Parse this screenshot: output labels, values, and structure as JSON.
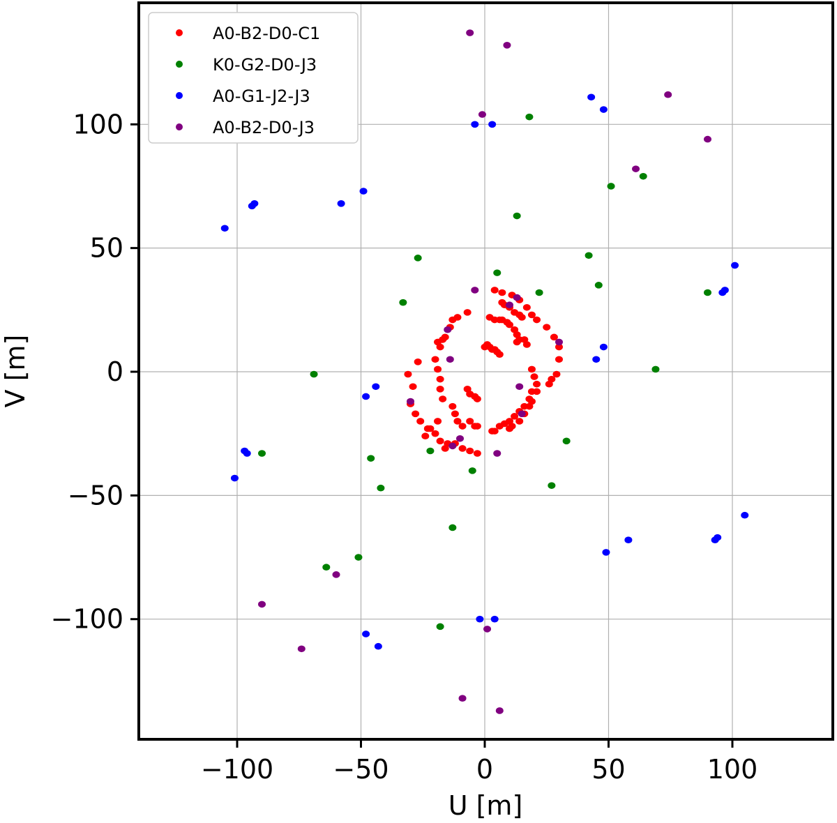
{
  "chart_data": {
    "type": "scatter",
    "title": "",
    "xlabel": "U [m]",
    "ylabel": "V [m]",
    "xlim": [
      -140,
      140
    ],
    "ylim": [
      -148,
      150
    ],
    "xticks": [
      -100,
      -50,
      0,
      50,
      100
    ],
    "yticks": [
      -100,
      -50,
      0,
      50,
      100
    ],
    "xtick_labels": [
      "−100",
      "−50",
      "0",
      "50",
      "100"
    ],
    "ytick_labels": [
      "−100",
      "−50",
      "0",
      "50",
      "100"
    ],
    "grid": true,
    "legend_position": "top-left",
    "series": [
      {
        "name": "A0-B2-D0-C1",
        "color": "#ff0000",
        "points": [
          [
            -31,
            -1
          ],
          [
            -29,
            -6
          ],
          [
            -30,
            -13
          ],
          [
            -28,
            -17
          ],
          [
            -26,
            -20
          ],
          [
            -23,
            -23
          ],
          [
            -20,
            -25
          ],
          [
            -18,
            -28
          ],
          [
            -16,
            -31
          ],
          [
            -27,
            4
          ],
          [
            -20,
            5
          ],
          [
            -19,
            1
          ],
          [
            -18,
            -3
          ],
          [
            -18,
            -7
          ],
          [
            -17,
            -11
          ],
          [
            -18,
            10
          ],
          [
            -17,
            13
          ],
          [
            -19,
            12
          ],
          [
            -16,
            14
          ],
          [
            -14,
            18
          ],
          [
            -13,
            21
          ],
          [
            -11,
            22
          ],
          [
            -7,
            24
          ],
          [
            -19,
            -20
          ],
          [
            -13,
            -14
          ],
          [
            -12,
            -17
          ],
          [
            -11,
            -20
          ],
          [
            -9,
            -22
          ],
          [
            -6,
            -20
          ],
          [
            -4,
            -22
          ],
          [
            -3,
            -22
          ],
          [
            -9,
            -31
          ],
          [
            -6,
            -32
          ],
          [
            -3,
            -33
          ],
          [
            -7,
            -7
          ],
          [
            -6,
            -9
          ],
          [
            -4,
            -10
          ],
          [
            -3,
            -11
          ],
          [
            0,
            10
          ],
          [
            1,
            11
          ],
          [
            2,
            10
          ],
          [
            3,
            9
          ],
          [
            4,
            9
          ],
          [
            5,
            8
          ],
          [
            6,
            7
          ],
          [
            2,
            22
          ],
          [
            4,
            21
          ],
          [
            6,
            21
          ],
          [
            7,
            21
          ],
          [
            9,
            20
          ],
          [
            10,
            19
          ],
          [
            4,
            33
          ],
          [
            7,
            32
          ],
          [
            11,
            31
          ],
          [
            14,
            29
          ],
          [
            17,
            26
          ],
          [
            19,
            23
          ],
          [
            21,
            21
          ],
          [
            25,
            18
          ],
          [
            28,
            14
          ],
          [
            30,
            10
          ],
          [
            30,
            5
          ],
          [
            12,
            17
          ],
          [
            13,
            15
          ],
          [
            14,
            13
          ],
          [
            13,
            12
          ],
          [
            16,
            13
          ],
          [
            17,
            11
          ],
          [
            19,
            1
          ],
          [
            20,
            -2
          ],
          [
            21,
            -5
          ],
          [
            19,
            -8
          ],
          [
            18,
            -11
          ],
          [
            16,
            -14
          ],
          [
            14,
            -16
          ],
          [
            12,
            -18
          ],
          [
            10,
            -20
          ],
          [
            8,
            -21
          ],
          [
            6,
            -22
          ],
          [
            4,
            -24
          ],
          [
            3,
            -24
          ],
          [
            21,
            -8
          ],
          [
            19,
            -12
          ],
          [
            18,
            -14
          ],
          [
            16,
            -17
          ],
          [
            14,
            -20
          ],
          [
            11,
            -22
          ],
          [
            10,
            -23
          ],
          [
            29,
            -1
          ],
          [
            27,
            -3
          ],
          [
            26,
            -5
          ],
          [
            -24,
            -26
          ],
          [
            -22,
            -23
          ],
          [
            -15,
            -29
          ],
          [
            -12,
            -29
          ],
          [
            7,
            28
          ],
          [
            8,
            27
          ],
          [
            10,
            26
          ],
          [
            12,
            24
          ],
          [
            14,
            23
          ],
          [
            15,
            22
          ]
        ]
      },
      {
        "name": "K0-G2-D0-J3",
        "color": "#008000",
        "points": [
          [
            -69,
            -1
          ],
          [
            69,
            1
          ],
          [
            -33,
            28
          ],
          [
            33,
            -28
          ],
          [
            -27,
            46
          ],
          [
            27,
            -46
          ],
          [
            5,
            40
          ],
          [
            -5,
            -40
          ],
          [
            13,
            63
          ],
          [
            -13,
            -63
          ],
          [
            18,
            103
          ],
          [
            -18,
            -103
          ],
          [
            42,
            47
          ],
          [
            -42,
            -47
          ],
          [
            46,
            35
          ],
          [
            -46,
            -35
          ],
          [
            22,
            32
          ],
          [
            -22,
            -32
          ],
          [
            51,
            75
          ],
          [
            -51,
            -75
          ],
          [
            64,
            79
          ],
          [
            -64,
            -79
          ],
          [
            90,
            32
          ],
          [
            -90,
            -33
          ]
        ]
      },
      {
        "name": "A0-G1-J2-J3",
        "color": "#0000ff",
        "points": [
          [
            -105,
            58
          ],
          [
            105,
            -58
          ],
          [
            -93,
            68
          ],
          [
            -94,
            67
          ],
          [
            93,
            -68
          ],
          [
            94,
            -67
          ],
          [
            -58,
            68
          ],
          [
            58,
            -68
          ],
          [
            -49,
            73
          ],
          [
            49,
            -73
          ],
          [
            -4,
            100
          ],
          [
            3,
            100
          ],
          [
            4,
            -100
          ],
          [
            -2,
            -100
          ],
          [
            43,
            111
          ],
          [
            -43,
            -111
          ],
          [
            48,
            106
          ],
          [
            -48,
            -106
          ],
          [
            101,
            43
          ],
          [
            -101,
            -43
          ],
          [
            97,
            33
          ],
          [
            96,
            32
          ],
          [
            -96,
            -33
          ],
          [
            -97,
            -32
          ],
          [
            48,
            10
          ],
          [
            -48,
            -10
          ],
          [
            45,
            5
          ],
          [
            -44,
            -6
          ]
        ]
      },
      {
        "name": "A0-B2-D0-J3",
        "color": "#800080",
        "points": [
          [
            -6,
            137
          ],
          [
            6,
            -137
          ],
          [
            9,
            132
          ],
          [
            -9,
            -132
          ],
          [
            -1,
            104
          ],
          [
            1,
            -104
          ],
          [
            74,
            112
          ],
          [
            -74,
            -112
          ],
          [
            90,
            94
          ],
          [
            -90,
            -94
          ],
          [
            61,
            82
          ],
          [
            -60,
            -82
          ],
          [
            -4,
            33
          ],
          [
            5,
            -33
          ],
          [
            13,
            30
          ],
          [
            -13,
            -30
          ],
          [
            10,
            27
          ],
          [
            -10,
            -27
          ],
          [
            30,
            12
          ],
          [
            -30,
            -12
          ],
          [
            -15,
            17
          ],
          [
            15,
            -17
          ],
          [
            -14,
            5
          ],
          [
            14,
            -6
          ]
        ]
      }
    ]
  }
}
